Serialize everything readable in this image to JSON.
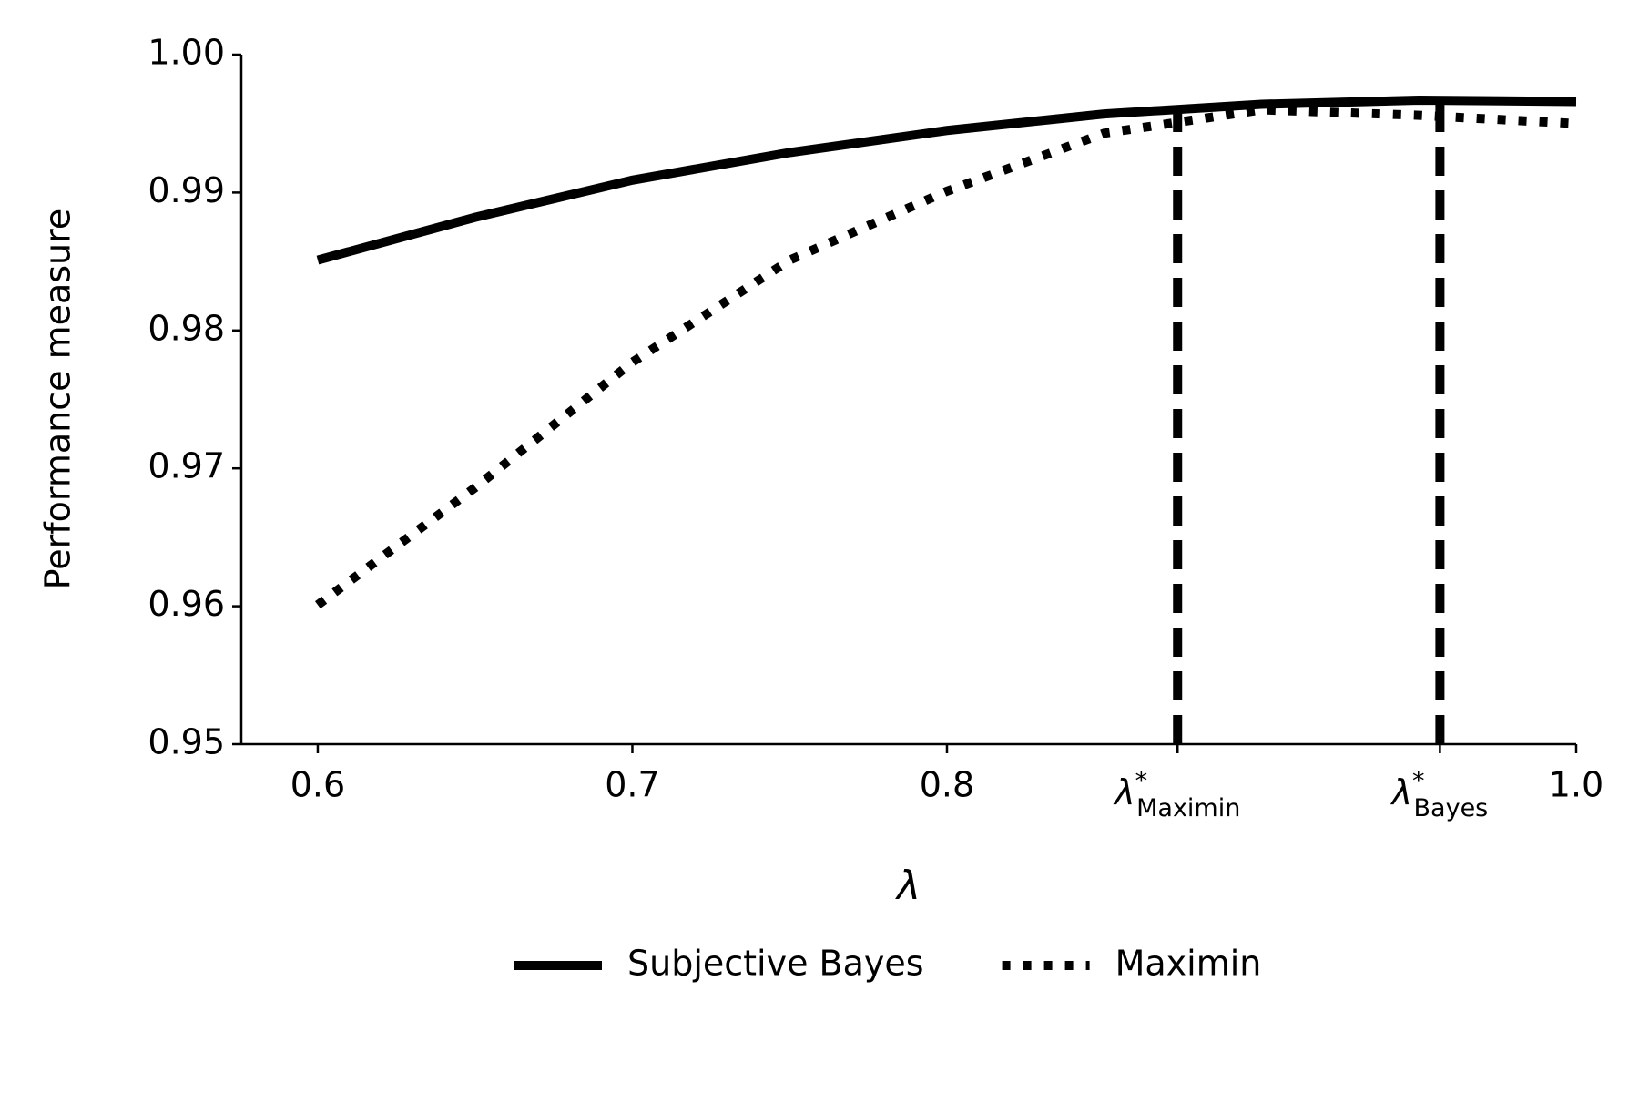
{
  "chart_data": {
    "type": "line",
    "x_label": "λ",
    "y_label": "Performance measure",
    "x": [
      0.6,
      0.65,
      0.7,
      0.75,
      0.8,
      0.85,
      0.9,
      0.95,
      1.0
    ],
    "series": [
      {
        "name": "Subjective Bayes",
        "color": "#000000",
        "style": "solid",
        "values": [
          0.9851,
          0.9882,
          0.9909,
          0.9929,
          0.9945,
          0.9957,
          0.9964,
          0.9967,
          0.9966
        ]
      },
      {
        "name": "Maximin",
        "color": "#000000",
        "style": "dotted",
        "values": [
          0.9601,
          0.9686,
          0.9777,
          0.9851,
          0.9901,
          0.9943,
          0.996,
          0.9956,
          0.995
        ]
      }
    ],
    "reference_lines": [
      {
        "x": 0.8733,
        "y": 0.9958
      },
      {
        "x": 0.9567,
        "y": 0.9967
      }
    ],
    "xlim": [
      0.5757,
      1.0
    ],
    "ylim": [
      0.95,
      1.0
    ],
    "xticks": [
      0.6,
      0.7,
      0.8,
      {
        "value": 0.8733,
        "label": "λ",
        "superscript": "*",
        "subscript": "Maximin"
      },
      {
        "value": 0.9567,
        "label": "λ",
        "superscript": "*",
        "subscript": "Bayes"
      },
      {
        "value": 1.0,
        "label": "1.0"
      }
    ],
    "yticks": [
      0.95,
      0.96,
      0.97,
      0.98,
      0.99,
      {
        "value": 1.0,
        "label": "1.00"
      }
    ],
    "grid": false,
    "legend": "bottom"
  }
}
